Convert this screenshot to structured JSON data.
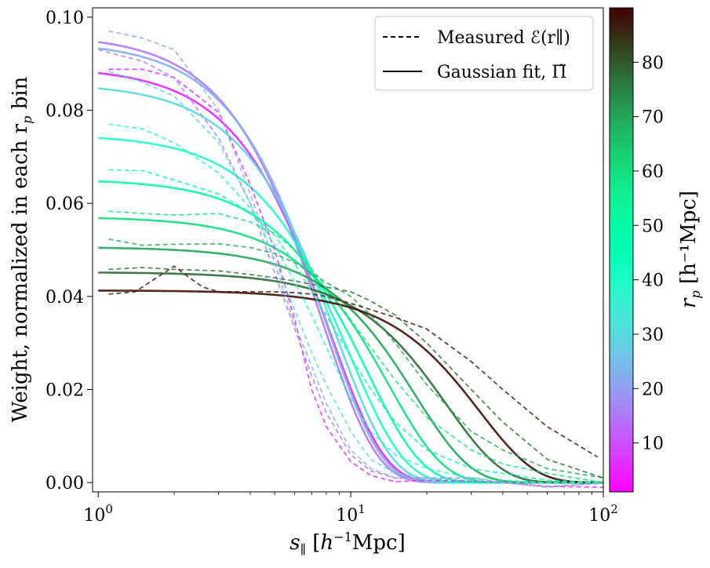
{
  "chart_data": {
    "type": "line",
    "xscale": "log",
    "xlim": [
      0.95,
      100
    ],
    "ylim": [
      -0.002,
      0.102
    ],
    "xlabel": "s∥ [h⁻¹Mpc]",
    "ylabel": "Weight, normalized in each r",
    "ylabel_sub": "p",
    "ylabel_tail": " bin",
    "xticks": [
      {
        "value": 1,
        "label": "10",
        "exp": "0"
      },
      {
        "value": 10,
        "label": "10",
        "exp": "1"
      },
      {
        "value": 100,
        "label": "10",
        "exp": "2"
      }
    ],
    "yticks": [
      0.0,
      0.02,
      0.04,
      0.06,
      0.08,
      0.1
    ],
    "ytick_labels": [
      "0.00",
      "0.02",
      "0.04",
      "0.06",
      "0.08",
      "0.10"
    ],
    "legend": {
      "placement": "top-right",
      "entries": [
        {
          "style": "dashed",
          "label": "Measured ℰ(r∥)"
        },
        {
          "style": "solid",
          "label": "Gaussian fit, Π̃"
        }
      ]
    },
    "colorbar": {
      "label": "r",
      "label_sub": "p",
      "label_tail": " [h⁻¹Mpc]",
      "range": [
        1,
        90
      ],
      "ticks": [
        10,
        20,
        30,
        40,
        50,
        60,
        70,
        80
      ],
      "tick_labels": [
        "10",
        "20",
        "30",
        "40",
        "50",
        "60",
        "70",
        "80"
      ]
    },
    "series": [
      {
        "name": "fit rp=5",
        "rp": 5,
        "style": "solid",
        "amp": 0.0893,
        "sigma": 5.8
      },
      {
        "name": "fit rp=15",
        "rp": 15,
        "style": "solid",
        "amp": 0.0963,
        "sigma": 5.4
      },
      {
        "name": "fit rp=22",
        "rp": 22,
        "style": "solid",
        "amp": 0.0948,
        "sigma": 5.6
      },
      {
        "name": "fit rp=30",
        "rp": 30,
        "style": "solid",
        "amp": 0.0858,
        "sigma": 6.2
      },
      {
        "name": "fit rp=40",
        "rp": 40,
        "style": "solid",
        "amp": 0.0748,
        "sigma": 7.0
      },
      {
        "name": "fit rp=50",
        "rp": 50,
        "style": "solid",
        "amp": 0.0652,
        "sigma": 8.2
      },
      {
        "name": "fit rp=60",
        "rp": 60,
        "style": "solid",
        "amp": 0.0571,
        "sigma": 10.0
      },
      {
        "name": "fit rp=70",
        "rp": 70,
        "style": "solid",
        "amp": 0.0506,
        "sigma": 12.8
      },
      {
        "name": "fit rp=78",
        "rp": 78,
        "style": "solid",
        "amp": 0.0452,
        "sigma": 17.0
      },
      {
        "name": "fit rp=88",
        "rp": 88,
        "style": "solid",
        "amp": 0.0413,
        "sigma": 23.0
      },
      {
        "name": "measured rp=5",
        "rp": 5,
        "style": "dashed",
        "x": [
          1.1,
          1.5,
          2.0,
          3.0,
          4.0,
          5.0,
          6.0,
          7.0,
          8.0,
          10.0,
          12.0,
          15.0,
          20.0,
          30.0,
          40.0,
          60.0,
          100.0
        ],
        "y": [
          0.0888,
          0.0888,
          0.087,
          0.0795,
          0.064,
          0.05,
          0.035,
          0.02,
          0.012,
          0.0045,
          0.0015,
          0.0002,
          0.0005,
          0.0003,
          0.0,
          -0.0008,
          -0.001
        ]
      },
      {
        "name": "measured rp=15",
        "rp": 15,
        "style": "dashed",
        "x": [
          1.0,
          1.5,
          2.0,
          3.0,
          4.0,
          5.0,
          6.0,
          7.0,
          8.0,
          10.0,
          12.0,
          15.0,
          20.0,
          30.0,
          40.0,
          60.0,
          100.0
        ],
        "y": [
          0.093,
          0.0905,
          0.087,
          0.074,
          0.06,
          0.045,
          0.033,
          0.023,
          0.015,
          0.006,
          0.0025,
          0.001,
          0.001,
          0.001,
          0.0,
          -0.001,
          0.0
        ]
      },
      {
        "name": "measured rp=22",
        "rp": 22,
        "style": "dashed",
        "x": [
          1.1,
          1.5,
          2.0,
          3.0,
          4.0,
          5.0,
          6.0,
          7.0,
          8.0,
          10.0,
          12.0,
          15.0,
          20.0,
          30.0,
          40.0,
          60.0,
          100.0
        ],
        "y": [
          0.097,
          0.0955,
          0.093,
          0.08,
          0.062,
          0.047,
          0.034,
          0.025,
          0.017,
          0.007,
          0.003,
          0.001,
          0.0008,
          0.0005,
          0.0,
          -0.0008,
          -0.0002
        ]
      },
      {
        "name": "measured rp=30",
        "rp": 30,
        "style": "dashed",
        "x": [
          1.1,
          1.5,
          2.0,
          3.0,
          4.0,
          5.0,
          6.0,
          7.0,
          8.0,
          10.0,
          12.0,
          15.0,
          20.0,
          30.0,
          40.0,
          60.0,
          100.0
        ],
        "y": [
          0.0883,
          0.086,
          0.083,
          0.073,
          0.06,
          0.048,
          0.037,
          0.028,
          0.021,
          0.011,
          0.005,
          0.002,
          0.001,
          0.0005,
          0.0,
          0.0,
          0.0
        ]
      },
      {
        "name": "measured rp=40",
        "rp": 40,
        "style": "dashed",
        "x": [
          1.1,
          1.5,
          2.0,
          3.0,
          4.0,
          5.0,
          6.0,
          7.0,
          8.0,
          10.0,
          12.0,
          15.0,
          20.0,
          30.0,
          40.0,
          60.0,
          100.0
        ],
        "y": [
          0.077,
          0.076,
          0.073,
          0.0665,
          0.059,
          0.051,
          0.043,
          0.036,
          0.029,
          0.018,
          0.011,
          0.006,
          0.003,
          0.001,
          0.0005,
          0.0,
          0.0
        ]
      },
      {
        "name": "measured rp=50",
        "rp": 50,
        "style": "dashed",
        "x": [
          1.1,
          1.5,
          2.0,
          3.0,
          4.0,
          5.0,
          6.0,
          7.0,
          8.0,
          10.0,
          12.0,
          15.0,
          20.0,
          30.0,
          40.0,
          60.0,
          100.0
        ],
        "y": [
          0.0672,
          0.067,
          0.065,
          0.062,
          0.058,
          0.053,
          0.047,
          0.041,
          0.036,
          0.027,
          0.02,
          0.013,
          0.007,
          0.003,
          0.002,
          0.0005,
          0.0
        ]
      },
      {
        "name": "measured rp=60",
        "rp": 60,
        "style": "dashed",
        "x": [
          1.1,
          1.5,
          2.0,
          3.0,
          4.0,
          5.0,
          6.0,
          7.0,
          8.0,
          10.0,
          12.0,
          15.0,
          20.0,
          30.0,
          40.0,
          60.0,
          100.0
        ],
        "y": [
          0.0583,
          0.0578,
          0.0575,
          0.0578,
          0.056,
          0.0535,
          0.05,
          0.046,
          0.042,
          0.035,
          0.029,
          0.022,
          0.014,
          0.007,
          0.004,
          0.002,
          0.0
        ]
      },
      {
        "name": "measured rp=70",
        "rp": 70,
        "style": "dashed",
        "x": [
          1.1,
          1.5,
          2.0,
          3.0,
          4.0,
          5.0,
          6.0,
          7.0,
          8.0,
          10.0,
          12.0,
          15.0,
          20.0,
          30.0,
          40.0,
          60.0,
          100.0
        ],
        "y": [
          0.0523,
          0.051,
          0.0512,
          0.0513,
          0.0505,
          0.0492,
          0.0472,
          0.045,
          0.043,
          0.04,
          0.036,
          0.03,
          0.021,
          0.011,
          0.007,
          0.003,
          0.001
        ]
      },
      {
        "name": "measured rp=78",
        "rp": 78,
        "style": "dashed",
        "x": [
          1.1,
          1.5,
          2.0,
          3.0,
          4.0,
          5.0,
          6.0,
          7.0,
          8.0,
          10.0,
          12.0,
          15.0,
          20.0,
          30.0,
          40.0,
          60.0,
          100.0
        ],
        "y": [
          0.0458,
          0.0462,
          0.0458,
          0.0455,
          0.0447,
          0.044,
          0.0433,
          0.0426,
          0.042,
          0.041,
          0.039,
          0.036,
          0.03,
          0.02,
          0.013,
          0.005,
          0.001
        ]
      },
      {
        "name": "measured rp=88",
        "rp": 88,
        "style": "dashed",
        "x": [
          1.1,
          1.4,
          1.7,
          2.0,
          2.3,
          2.6,
          3.0,
          4.0,
          5.0,
          6.0,
          7.0,
          8.0,
          10.0,
          15.0,
          20.0,
          30.0,
          40.0,
          60.0,
          95.0
        ],
        "y": [
          0.0405,
          0.041,
          0.044,
          0.0465,
          0.044,
          0.042,
          0.041,
          0.041,
          0.041,
          0.0408,
          0.0405,
          0.04,
          0.0385,
          0.0355,
          0.033,
          0.026,
          0.02,
          0.012,
          0.0055
        ]
      }
    ]
  }
}
